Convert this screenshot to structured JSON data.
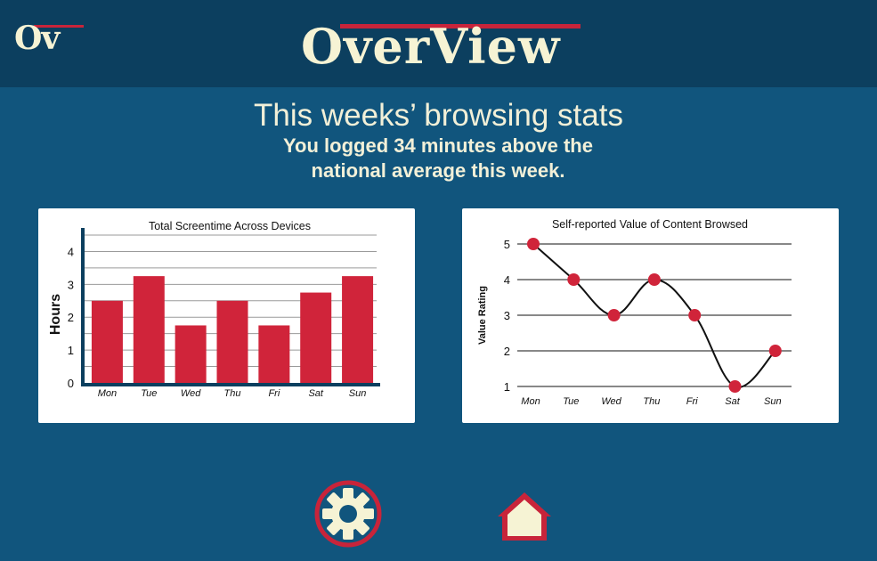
{
  "header": {
    "logo_small": "Ov",
    "logo_main": "OverView"
  },
  "headline": "This weeks’ browsing stats",
  "subline": "You logged 34 minutes above the national average this week.",
  "colors": {
    "background": "#11557d",
    "header": "#0c3f5f",
    "accent": "#c8243a",
    "cream": "#f6f3d4"
  },
  "chart_data": [
    {
      "type": "bar",
      "title": "Total Screentime Across Devices",
      "ylabel": "Hours",
      "xlabel": "",
      "categories": [
        "Mon",
        "Tue",
        "Wed",
        "Thu",
        "Fri",
        "Sat",
        "Sun"
      ],
      "values": [
        2.5,
        3.25,
        1.75,
        2.5,
        1.75,
        2.75,
        3.25
      ],
      "ylim": [
        0,
        4.5
      ],
      "yticks": [
        "0",
        "1",
        "2",
        "3",
        "4"
      ],
      "grid": true
    },
    {
      "type": "line",
      "title": "Self-reported Value of Content Browsed",
      "ylabel": "Value Rating",
      "xlabel": "",
      "categories": [
        "Mon",
        "Tue",
        "Wed",
        "Thu",
        "Fri",
        "Sat",
        "Sun"
      ],
      "values": [
        5,
        4,
        3,
        4,
        3,
        1,
        2
      ],
      "ylim": [
        1,
        5
      ],
      "yticks": [
        "1",
        "2",
        "3",
        "4",
        "5"
      ],
      "grid": true
    }
  ],
  "nav": {
    "settings_icon": "gear-icon",
    "home_icon": "home-icon"
  }
}
